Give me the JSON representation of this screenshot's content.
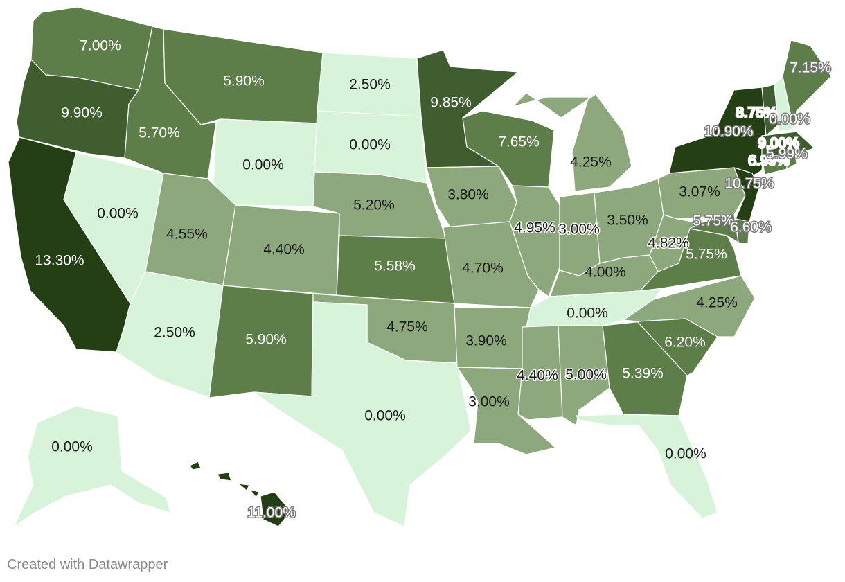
{
  "colors": {
    "level0": "#d7f4da",
    "level1": "#8ca87c",
    "level2": "#5d7d49",
    "level3": "#3f5d2f",
    "level4": "#253f15"
  },
  "credit": "Created with Datawrapper",
  "states": {
    "WA": {
      "label": "7.00%",
      "level": 2
    },
    "OR": {
      "label": "9.90%",
      "level": 3
    },
    "CA": {
      "label": "13.30%",
      "level": 4
    },
    "NV": {
      "label": "0.00%",
      "level": 0
    },
    "ID": {
      "label": "5.70%",
      "level": 2
    },
    "MT": {
      "label": "5.90%",
      "level": 2
    },
    "WY": {
      "label": "0.00%",
      "level": 0
    },
    "UT": {
      "label": "4.55%",
      "level": 1
    },
    "AZ": {
      "label": "2.50%",
      "level": 0
    },
    "CO": {
      "label": "4.40%",
      "level": 1
    },
    "NM": {
      "label": "5.90%",
      "level": 2
    },
    "ND": {
      "label": "2.50%",
      "level": 0
    },
    "SD": {
      "label": "0.00%",
      "level": 0
    },
    "NE": {
      "label": "5.20%",
      "level": 1
    },
    "KS": {
      "label": "5.58%",
      "level": 2
    },
    "OK": {
      "label": "4.75%",
      "level": 1
    },
    "TX": {
      "label": "0.00%",
      "level": 0
    },
    "MN": {
      "label": "9.85%",
      "level": 3
    },
    "IA": {
      "label": "3.80%",
      "level": 1
    },
    "MO": {
      "label": "4.70%",
      "level": 1
    },
    "AR": {
      "label": "3.90%",
      "level": 1
    },
    "LA": {
      "label": "3.00%",
      "level": 1
    },
    "WI": {
      "label": "7.65%",
      "level": 2
    },
    "IL": {
      "label": "4.95%",
      "level": 1
    },
    "MI": {
      "label": "4.25%",
      "level": 1
    },
    "IN": {
      "label": "3.00%",
      "level": 1
    },
    "OH": {
      "label": "3.50%",
      "level": 1
    },
    "KY": {
      "label": "4.00%",
      "level": 1
    },
    "TN": {
      "label": "0.00%",
      "level": 0
    },
    "MS": {
      "label": "4.40%",
      "level": 1
    },
    "AL": {
      "label": "5.00%",
      "level": 1
    },
    "GA": {
      "label": "5.39%",
      "level": 2
    },
    "FL": {
      "label": "0.00%",
      "level": 0
    },
    "SC": {
      "label": "6.20%",
      "level": 2
    },
    "NC": {
      "label": "4.25%",
      "level": 1
    },
    "VA": {
      "label": "5.75%",
      "level": 2
    },
    "WV": {
      "label": "4.82%",
      "level": 1
    },
    "PA": {
      "label": "3.07%",
      "level": 1
    },
    "NY": {
      "label": "10.90%",
      "level": 4
    },
    "NJ": {
      "label": "10.75%",
      "level": 4
    },
    "MD": {
      "label": "5.75%",
      "level": 2
    },
    "DE": {
      "label": "6.60%",
      "level": 2
    },
    "CT": {
      "label": "6.99%",
      "level": 2
    },
    "RI": {
      "label": "5.99%",
      "level": 2
    },
    "MA": {
      "label": "9.00%",
      "level": 3
    },
    "VT": {
      "label": "8.75%",
      "level": 3
    },
    "NH": {
      "label": "0.00%",
      "level": 0
    },
    "ME": {
      "label": "7.15%",
      "level": 2
    },
    "AK": {
      "label": "0.00%",
      "level": 0
    },
    "HI": {
      "label": "11.00%",
      "level": 4
    }
  }
}
